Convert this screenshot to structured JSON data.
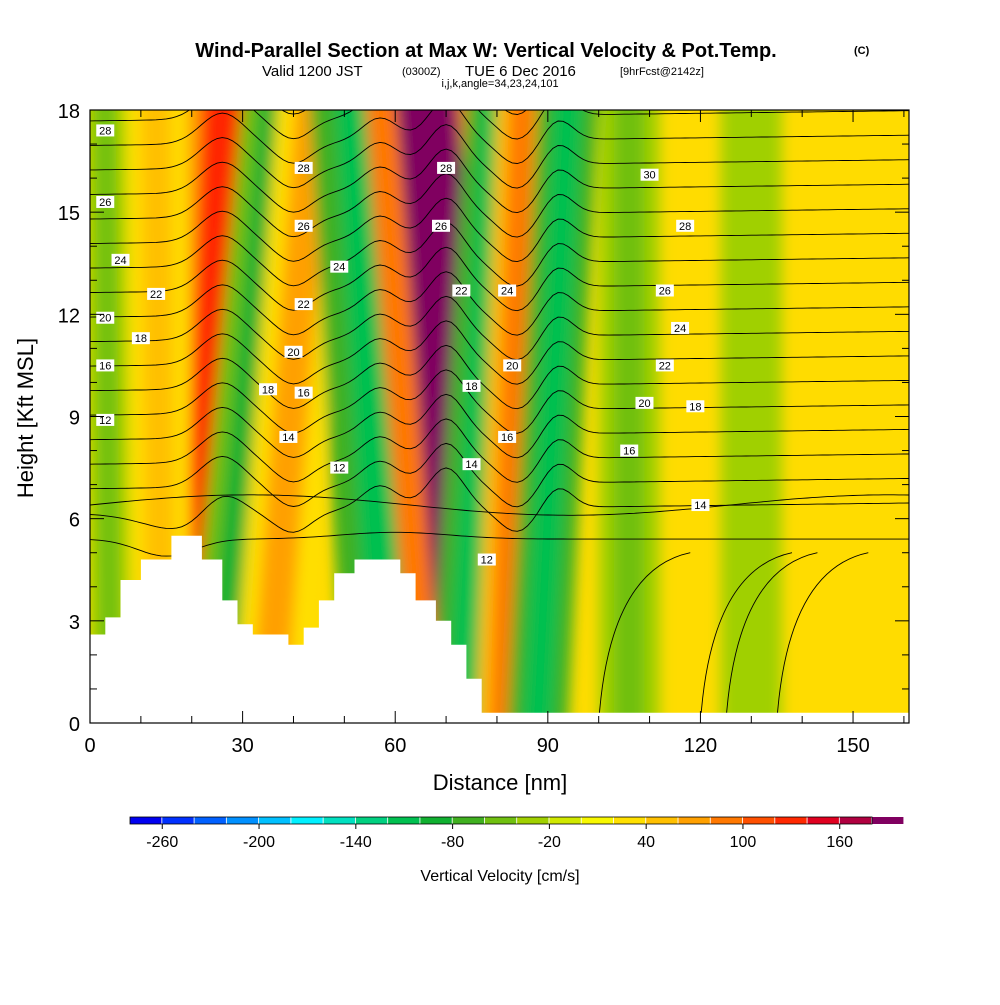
{
  "header": {
    "title": "Wind-Parallel Section at Max W: Vertical Velocity & Pot.Temp.",
    "title_unit": "(C)",
    "valid_prefix": "Valid 1200 JST",
    "valid_utc": "(0300Z)",
    "valid_date": "TUE 6 Dec 2016",
    "forecast_tag": "[9hrFcst@2142z]",
    "indices": "i,j,k,angle=34,23,24,101"
  },
  "chart_data": {
    "type": "heatmap",
    "xlabel": "Distance [nm]",
    "ylabel": "Height [Kft MSL]",
    "xlim": [
      0,
      161
    ],
    "ylim": [
      0,
      18
    ],
    "x_ticks": [
      "0",
      "30",
      "60",
      "90",
      "120",
      "150"
    ],
    "x_tick_values": [
      0,
      30,
      60,
      90,
      120,
      150
    ],
    "y_ticks": [
      "0",
      "3",
      "6",
      "9",
      "12",
      "15",
      "18"
    ],
    "y_tick_values": [
      0,
      3,
      6,
      9,
      12,
      15,
      18
    ],
    "terrain": {
      "x": [
        0,
        3,
        3,
        6,
        6,
        10,
        10,
        16,
        16,
        22,
        22,
        26,
        26,
        29,
        29,
        32,
        32,
        39,
        39,
        42,
        42,
        45,
        45,
        48,
        48,
        52,
        52,
        61,
        61,
        64,
        64,
        68,
        68,
        71,
        71,
        74,
        74,
        77,
        77,
        81,
        81,
        161
      ],
      "height": [
        2.6,
        2.6,
        3.1,
        3.1,
        4.2,
        4.2,
        4.8,
        4.8,
        5.5,
        5.5,
        4.8,
        4.8,
        3.6,
        3.6,
        2.9,
        2.9,
        2.6,
        2.6,
        2.3,
        2.3,
        2.8,
        2.8,
        3.6,
        3.6,
        4.4,
        4.4,
        4.8,
        4.8,
        4.4,
        4.4,
        3.6,
        3.6,
        3.0,
        3.0,
        2.3,
        2.3,
        1.3,
        1.3,
        0.3,
        0.3,
        0.3,
        0.3
      ]
    },
    "vertical_velocity": {
      "name": "Vertical Velocity [cm/s]",
      "bands": [
        {
          "x_bottom": 22,
          "x_top": 26,
          "width": 4,
          "value": 120
        },
        {
          "x_bottom": 26,
          "x_top": 37,
          "width": 3.5,
          "value": -100
        },
        {
          "x_bottom": 35,
          "x_top": 44,
          "width": 3.5,
          "value": 70
        },
        {
          "x_bottom": 60,
          "x_top": 53,
          "width": 5,
          "value": -110
        },
        {
          "x_bottom": 75,
          "x_top": 66,
          "width": 6,
          "value": 180
        },
        {
          "x_bottom": 73,
          "x_top": 80,
          "width": 3,
          "value": -120
        },
        {
          "x_bottom": 81,
          "x_top": 85,
          "width": 2.5,
          "value": 90
        },
        {
          "x_bottom": 88,
          "x_top": 94,
          "width": 3,
          "value": -110
        },
        {
          "x_bottom": 106,
          "x_top": 106,
          "width": 3,
          "value": -50
        },
        {
          "x_bottom": 130,
          "x_top": 130,
          "width": 3,
          "value": -40
        },
        {
          "x_bottom": 4,
          "x_top": 3,
          "width": 2,
          "value": -50
        },
        {
          "x_bottom": 14,
          "x_top": 13,
          "width": 3,
          "value": 40
        }
      ]
    },
    "potential_temperature": {
      "name": "Pot.Temp. (C)",
      "levels": [
        10,
        11,
        12,
        13,
        14,
        15,
        16,
        17,
        18,
        19,
        20,
        21,
        22,
        23,
        24,
        25,
        26,
        27,
        28,
        29,
        30
      ],
      "labeled": [
        {
          "label": "28",
          "x": 3,
          "y": 17.4
        },
        {
          "label": "26",
          "x": 3,
          "y": 15.3
        },
        {
          "label": "24",
          "x": 6,
          "y": 13.6
        },
        {
          "label": "22",
          "x": 13,
          "y": 12.6
        },
        {
          "label": "20",
          "x": 3,
          "y": 11.9
        },
        {
          "label": "18",
          "x": 10,
          "y": 11.3
        },
        {
          "label": "16",
          "x": 3,
          "y": 10.5
        },
        {
          "label": "12",
          "x": 3,
          "y": 8.9
        },
        {
          "label": "28",
          "x": 42,
          "y": 16.3
        },
        {
          "label": "26",
          "x": 42,
          "y": 14.6
        },
        {
          "label": "24",
          "x": 49,
          "y": 13.4
        },
        {
          "label": "22",
          "x": 42,
          "y": 12.3
        },
        {
          "label": "20",
          "x": 40,
          "y": 10.9
        },
        {
          "label": "18",
          "x": 35,
          "y": 9.8
        },
        {
          "label": "16",
          "x": 42,
          "y": 9.7
        },
        {
          "label": "14",
          "x": 39,
          "y": 8.4
        },
        {
          "label": "12",
          "x": 49,
          "y": 7.5
        },
        {
          "label": "28",
          "x": 70,
          "y": 16.3
        },
        {
          "label": "26",
          "x": 69,
          "y": 14.6
        },
        {
          "label": "22",
          "x": 73,
          "y": 12.7
        },
        {
          "label": "24",
          "x": 82,
          "y": 12.7
        },
        {
          "label": "20",
          "x": 83,
          "y": 10.5
        },
        {
          "label": "18",
          "x": 75,
          "y": 9.9
        },
        {
          "label": "16",
          "x": 82,
          "y": 8.4
        },
        {
          "label": "14",
          "x": 75,
          "y": 7.6
        },
        {
          "label": "12",
          "x": 78,
          "y": 4.8
        },
        {
          "label": "30",
          "x": 110,
          "y": 16.1
        },
        {
          "label": "28",
          "x": 117,
          "y": 14.6
        },
        {
          "label": "26",
          "x": 113,
          "y": 12.7
        },
        {
          "label": "24",
          "x": 116,
          "y": 11.6
        },
        {
          "label": "22",
          "x": 113,
          "y": 10.5
        },
        {
          "label": "20",
          "x": 109,
          "y": 9.4
        },
        {
          "label": "18",
          "x": 119,
          "y": 9.3
        },
        {
          "label": "16",
          "x": 106,
          "y": 8.0
        },
        {
          "label": "14",
          "x": 120,
          "y": 6.4
        }
      ]
    },
    "colorbar": {
      "label": "Vertical Velocity [cm/s]",
      "min": -280,
      "max": 180,
      "step": 20,
      "tick_labels": [
        "-260",
        "-200",
        "-140",
        "-80",
        "-20",
        "40",
        "100",
        "160"
      ],
      "tick_values": [
        -260,
        -200,
        -140,
        -80,
        -20,
        40,
        100,
        160
      ],
      "colors": [
        "#0000f0",
        "#0030ff",
        "#0060ff",
        "#0090ff",
        "#00c0ff",
        "#00f0ff",
        "#00e0c0",
        "#00d080",
        "#00c050",
        "#10b030",
        "#40b020",
        "#70c010",
        "#a0d000",
        "#d0e800",
        "#f8f800",
        "#ffe000",
        "#ffc000",
        "#ffa000",
        "#ff7800",
        "#ff5000",
        "#ff2800",
        "#e00020",
        "#b00040",
        "#800060"
      ]
    }
  }
}
